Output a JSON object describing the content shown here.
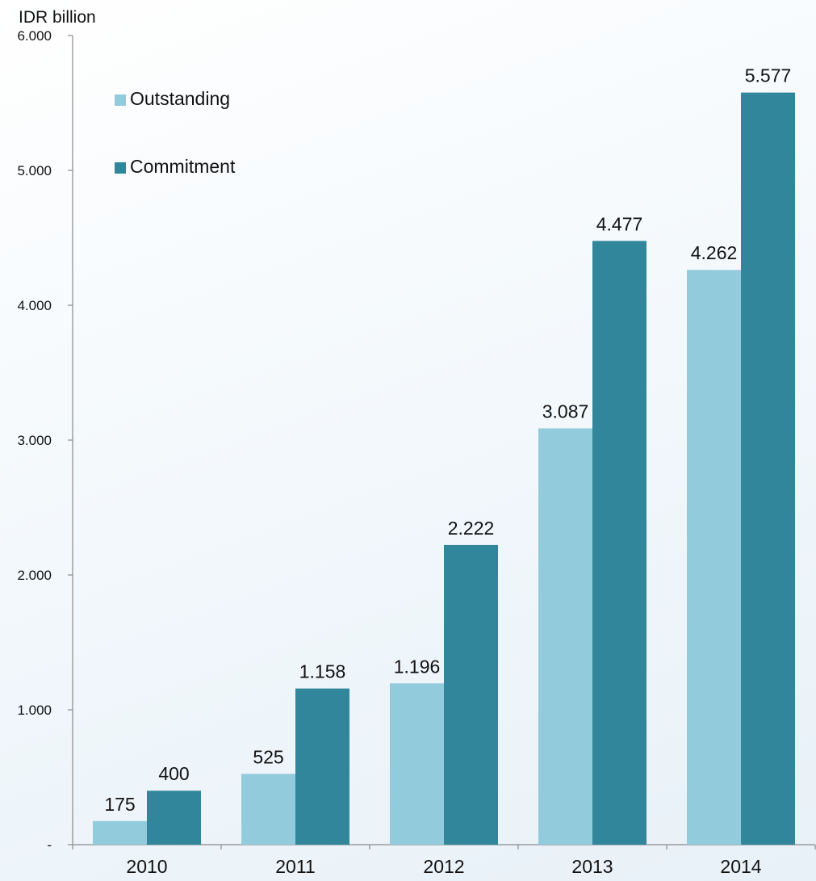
{
  "chart_data": {
    "type": "bar",
    "ylabel": "IDR billion",
    "categories": [
      "2010",
      "2011",
      "2012",
      "2013",
      "2014"
    ],
    "series": [
      {
        "name": "Outstanding",
        "color": "#92cbdc",
        "values": [
          175,
          525,
          1196,
          3087,
          4262
        ],
        "labels": [
          "175",
          "525",
          "1.196",
          "3.087",
          "4.262"
        ]
      },
      {
        "name": "Commitment",
        "color": "#31869b",
        "values": [
          400,
          1158,
          2222,
          4477,
          5577
        ],
        "labels": [
          "400",
          "1.158",
          "2.222",
          "4.477",
          "5.577"
        ]
      }
    ],
    "ylim": [
      0,
      6000
    ],
    "yticks": [
      0,
      1000,
      2000,
      3000,
      4000,
      5000,
      6000
    ],
    "ytick_labels": [
      "-",
      "1.000",
      "2.000",
      "3.000",
      "4.000",
      "5.000",
      "6.000"
    ],
    "legend_position": "top-left",
    "grid": false
  }
}
